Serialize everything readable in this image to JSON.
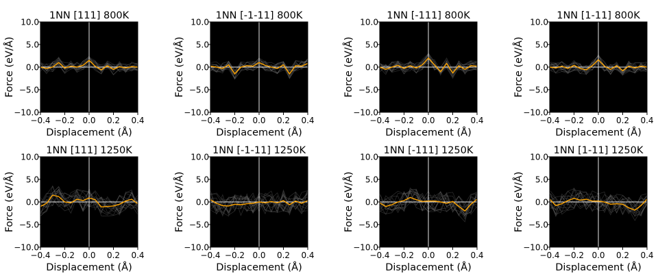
{
  "figure": {
    "background": "#ffffff"
  },
  "chart_data": [
    {
      "type": "line",
      "title": "1NN [111] 800K",
      "xlabel": "Displacement (Å)",
      "ylabel": "Force (eV/Å)",
      "xlim": [
        -0.4,
        0.4
      ],
      "ylim": [
        -10,
        10
      ],
      "xticks": [
        "−0.4",
        "−0.2",
        "0.0",
        "0.2",
        "0.4"
      ],
      "yticks": [
        "10.0",
        "5.0",
        "0.0",
        "−5.0",
        "−10.0"
      ],
      "grid": false,
      "axes_background": "#000000",
      "series": [
        {
          "color": "#ffa500",
          "x": [
            -0.4,
            -0.35,
            -0.3,
            -0.25,
            -0.2,
            -0.15,
            -0.1,
            -0.05,
            0.0,
            0.05,
            0.1,
            0.15,
            0.2,
            0.25,
            0.3,
            0.35,
            0.4
          ],
          "y": [
            0.0,
            -0.3,
            0.0,
            1.0,
            -0.2,
            0.2,
            0.0,
            0.4,
            1.5,
            0.2,
            -0.6,
            0.3,
            -0.5,
            0.1,
            -0.2,
            0.1,
            0.0
          ]
        }
      ]
    },
    {
      "type": "line",
      "title": "1NN [-1-11] 800K",
      "xlabel": "Displacement (Å)",
      "ylabel": "Force (eV/Å)",
      "xlim": [
        -0.4,
        0.4
      ],
      "ylim": [
        -10,
        10
      ],
      "xticks": [
        "−0.4",
        "−0.2",
        "0.0",
        "0.2",
        "0.4"
      ],
      "yticks": [
        "10.0",
        "5.0",
        "0.0",
        "−5.0",
        "−10.0"
      ],
      "grid": false,
      "axes_background": "#000000",
      "series": [
        {
          "color": "#ffa500",
          "x": [
            -0.4,
            -0.35,
            -0.3,
            -0.25,
            -0.2,
            -0.15,
            -0.1,
            -0.05,
            0.0,
            0.05,
            0.1,
            0.15,
            0.2,
            0.25,
            0.3,
            0.35,
            0.4
          ],
          "y": [
            0.2,
            0.0,
            -0.3,
            0.5,
            -1.5,
            0.0,
            0.3,
            0.2,
            1.0,
            0.4,
            0.0,
            -0.3,
            0.5,
            -1.5,
            0.3,
            0.2,
            0.8
          ]
        }
      ]
    },
    {
      "type": "line",
      "title": "1NN [-111] 800K",
      "xlabel": "Displacement (Å)",
      "ylabel": "Force (eV/Å)",
      "xlim": [
        -0.4,
        0.4
      ],
      "ylim": [
        -10,
        10
      ],
      "xticks": [
        "−0.4",
        "−0.2",
        "0.0",
        "0.2",
        "0.4"
      ],
      "yticks": [
        "10.0",
        "5.0",
        "0.0",
        "−5.0",
        "−10.0"
      ],
      "grid": false,
      "axes_background": "#000000",
      "series": [
        {
          "color": "#ffa500",
          "x": [
            -0.4,
            -0.35,
            -0.3,
            -0.25,
            -0.2,
            -0.15,
            -0.1,
            -0.05,
            0.0,
            0.05,
            0.1,
            0.15,
            0.2,
            0.25,
            0.3,
            0.35,
            0.4
          ],
          "y": [
            0.0,
            -0.5,
            0.0,
            0.4,
            -0.3,
            0.3,
            -0.2,
            0.5,
            2.0,
            0.5,
            -1.0,
            0.8,
            -1.3,
            0.3,
            -0.5,
            0.3,
            0.2
          ]
        }
      ]
    },
    {
      "type": "line",
      "title": "1NN [1-11] 800K",
      "xlabel": "Displacement (Å)",
      "ylabel": "Force (eV/Å)",
      "xlim": [
        -0.4,
        0.4
      ],
      "ylim": [
        -10,
        10
      ],
      "xticks": [
        "−0.4",
        "−0.2",
        "0.0",
        "0.2",
        "0.4"
      ],
      "yticks": [
        "10.0",
        "5.0",
        "0.0",
        "−5.0",
        "−10.0"
      ],
      "grid": false,
      "axes_background": "#000000",
      "series": [
        {
          "color": "#ffa500",
          "x": [
            -0.4,
            -0.35,
            -0.3,
            -0.25,
            -0.2,
            -0.15,
            -0.1,
            -0.05,
            0.0,
            0.05,
            0.1,
            0.15,
            0.2,
            0.25,
            0.3,
            0.35,
            0.4
          ],
          "y": [
            0.0,
            -0.2,
            0.2,
            -0.3,
            0.4,
            -0.3,
            -0.6,
            0.3,
            1.6,
            0.2,
            -0.5,
            0.3,
            -0.8,
            0.2,
            -0.2,
            0.2,
            0.0
          ]
        }
      ]
    },
    {
      "type": "line",
      "title": "1NN [111] 1250K",
      "xlabel": "Displacement (Å)",
      "ylabel": "Force (eV/Å)",
      "xlim": [
        -0.4,
        0.4
      ],
      "ylim": [
        -10,
        10
      ],
      "xticks": [
        "−0.4",
        "−0.2",
        "0.0",
        "0.2",
        "0.4"
      ],
      "yticks": [
        "10.0",
        "5.0",
        "0.0",
        "−5.0",
        "−10.0"
      ],
      "grid": false,
      "axes_background": "#000000",
      "series": [
        {
          "color": "#ffa500",
          "x": [
            -0.4,
            -0.35,
            -0.3,
            -0.25,
            -0.2,
            -0.15,
            -0.1,
            -0.05,
            0.0,
            0.05,
            0.1,
            0.15,
            0.2,
            0.25,
            0.3,
            0.35,
            0.4
          ],
          "y": [
            -1.0,
            -0.3,
            1.5,
            1.2,
            0.0,
            -0.2,
            0.6,
            0.3,
            0.9,
            0.5,
            -1.1,
            -1.0,
            -0.9,
            -0.5,
            0.2,
            0.6,
            -0.4
          ]
        }
      ]
    },
    {
      "type": "line",
      "title": "1NN [-1-11] 1250K",
      "xlabel": "Displacement (Å)",
      "ylabel": "Force (eV/Å)",
      "xlim": [
        -0.4,
        0.4
      ],
      "ylim": [
        -10,
        10
      ],
      "xticks": [
        "−0.4",
        "−0.2",
        "0.0",
        "0.2",
        "0.4"
      ],
      "yticks": [
        "10.0",
        "5.0",
        "0.0",
        "−5.0",
        "−10.0"
      ],
      "grid": false,
      "axes_background": "#000000",
      "series": [
        {
          "color": "#ffa500",
          "x": [
            -0.4,
            -0.35,
            -0.3,
            -0.25,
            -0.2,
            -0.15,
            -0.1,
            -0.05,
            0.0,
            0.05,
            0.1,
            0.15,
            0.2,
            0.25,
            0.3,
            0.35,
            0.4
          ],
          "y": [
            0.5,
            -0.3,
            -0.8,
            -0.9,
            -0.5,
            -0.6,
            -0.4,
            -0.3,
            0.0,
            -0.2,
            0.1,
            -0.2,
            0.3,
            -0.6,
            0.2,
            -0.3,
            0.3
          ]
        }
      ]
    },
    {
      "type": "line",
      "title": "1NN [-111] 1250K",
      "xlabel": "Displacement (Å)",
      "ylabel": "Force (eV/Å)",
      "xlim": [
        -0.4,
        0.4
      ],
      "ylim": [
        -10,
        10
      ],
      "xticks": [
        "−0.4",
        "−0.2",
        "0.0",
        "0.2",
        "0.4"
      ],
      "yticks": [
        "10.0",
        "5.0",
        "0.0",
        "−5.0",
        "−10.0"
      ],
      "grid": false,
      "axes_background": "#000000",
      "series": [
        {
          "color": "#ffa500",
          "x": [
            -0.4,
            -0.35,
            -0.3,
            -0.25,
            -0.2,
            -0.15,
            -0.1,
            -0.05,
            0.0,
            0.05,
            0.1,
            0.15,
            0.2,
            0.25,
            0.3,
            0.35,
            0.4
          ],
          "y": [
            -0.2,
            -1.0,
            -0.6,
            0.0,
            0.3,
            1.0,
            0.5,
            0.1,
            0.2,
            0.2,
            0.0,
            -0.3,
            0.1,
            -1.0,
            -2.0,
            -0.5,
            0.6
          ]
        }
      ]
    },
    {
      "type": "line",
      "title": "1NN [1-11] 1250K",
      "xlabel": "Displacement (Å)",
      "ylabel": "Force (eV/Å)",
      "xlim": [
        -0.4,
        0.4
      ],
      "ylim": [
        -10,
        10
      ],
      "xticks": [
        "−0.4",
        "−0.2",
        "0.0",
        "0.2",
        "0.4"
      ],
      "yticks": [
        "10.0",
        "5.0",
        "0.0",
        "−5.0",
        "−10.0"
      ],
      "grid": false,
      "axes_background": "#000000",
      "series": [
        {
          "color": "#ffa500",
          "x": [
            -0.4,
            -0.35,
            -0.3,
            -0.25,
            -0.2,
            -0.15,
            -0.1,
            -0.05,
            0.0,
            0.05,
            0.1,
            0.15,
            0.2,
            0.25,
            0.3,
            0.35,
            0.4
          ],
          "y": [
            0.6,
            -0.8,
            -0.4,
            0.3,
            0.8,
            0.4,
            0.6,
            0.2,
            0.2,
            0.0,
            -0.5,
            -0.4,
            -0.5,
            -1.3,
            -1.8,
            -0.8,
            0.6
          ]
        }
      ]
    }
  ]
}
